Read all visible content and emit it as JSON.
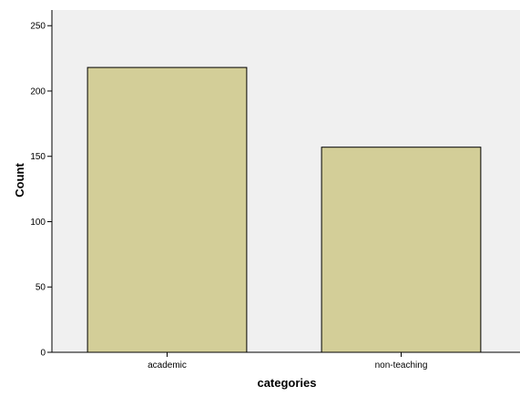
{
  "chart_data": {
    "type": "bar",
    "title": "",
    "xlabel": "categories",
    "ylabel": "Count",
    "categories": [
      "academic",
      "non-teaching"
    ],
    "values": [
      218,
      157
    ],
    "ylim": [
      0,
      262
    ],
    "yticks": [
      0,
      50,
      100,
      150,
      200,
      250
    ],
    "grid": false,
    "legend": "none",
    "colors": {
      "bar_fill": "#d3ce98",
      "bar_stroke": "#000000",
      "plot_background": "#f0f0f0"
    }
  }
}
